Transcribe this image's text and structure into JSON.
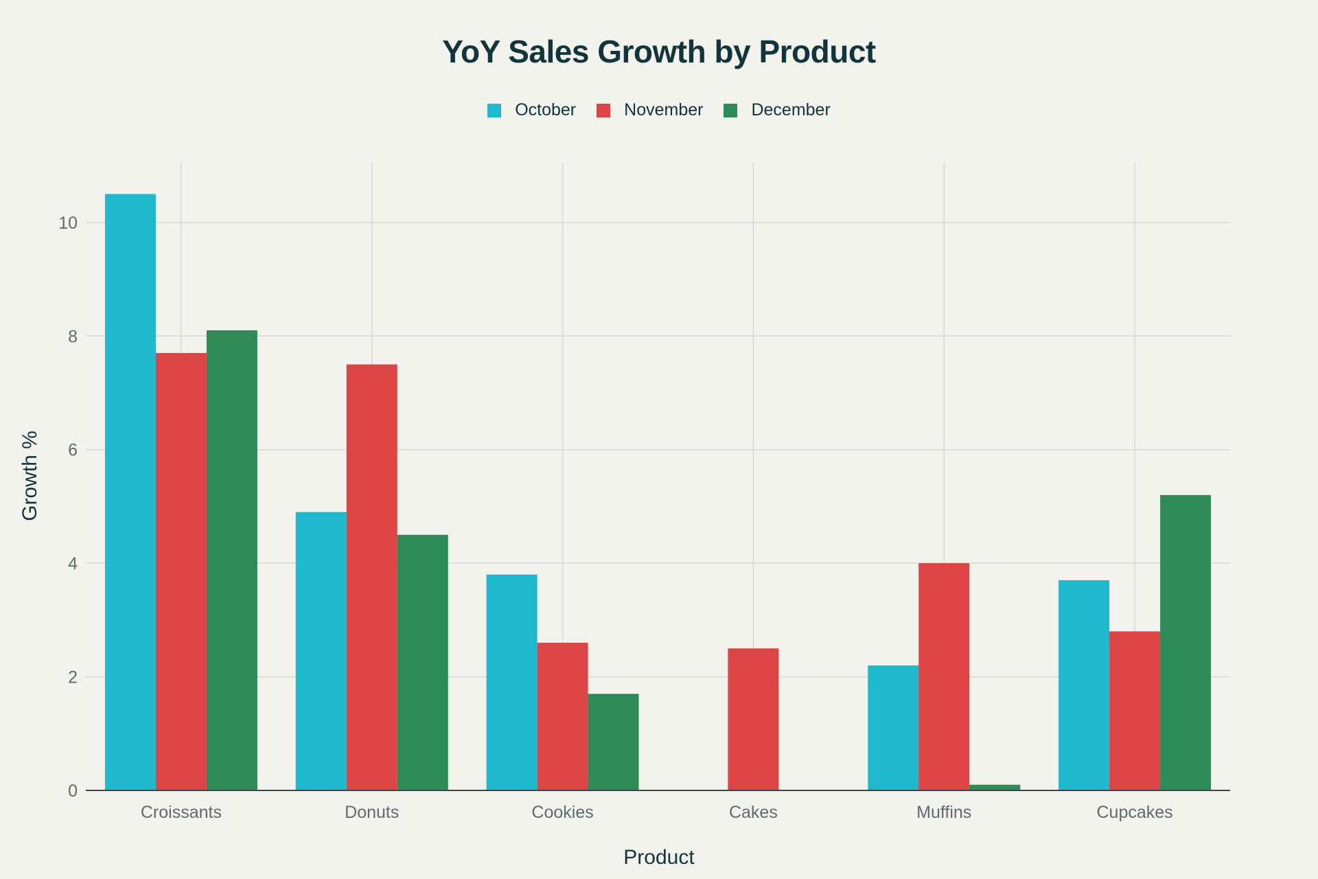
{
  "chart_data": {
    "type": "bar",
    "title": "YoY Sales Growth by Product",
    "xlabel": "Product",
    "ylabel": "Growth %",
    "categories": [
      "Croissants",
      "Donuts",
      "Cookies",
      "Cakes",
      "Muffins",
      "Cupcakes"
    ],
    "series": [
      {
        "name": "October",
        "color": "#1fb8cd",
        "values": [
          10.5,
          4.9,
          3.8,
          0,
          2.2,
          3.7
        ]
      },
      {
        "name": "November",
        "color": "#db4545",
        "values": [
          7.7,
          7.5,
          2.6,
          2.5,
          4.0,
          2.8
        ]
      },
      {
        "name": "December",
        "color": "#2e8b57",
        "values": [
          8.1,
          4.5,
          1.7,
          0,
          0.1,
          5.2
        ]
      }
    ],
    "ylim": [
      0,
      11.05
    ],
    "yticks": [
      0,
      2,
      4,
      6,
      8,
      10
    ],
    "grid": true,
    "legend_position": "top-center"
  }
}
